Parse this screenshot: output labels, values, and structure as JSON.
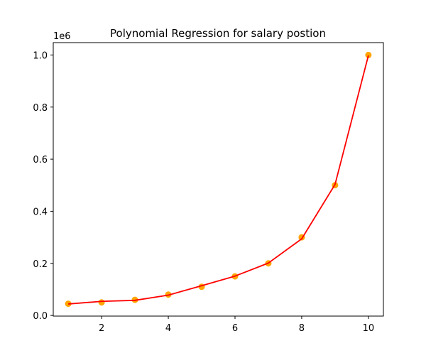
{
  "chart_data": {
    "type": "scatter",
    "title": "Polynomial Regression for salary postion",
    "xlabel": "",
    "ylabel": "",
    "offset_text": "1e6",
    "xlim": [
      0.55,
      10.45
    ],
    "ylim": [
      -0.0025,
      1.0475
    ],
    "x_ticks": [
      2,
      4,
      6,
      8,
      10
    ],
    "x_tick_labels": [
      "2",
      "4",
      "6",
      "8",
      "10"
    ],
    "y_ticks": [
      0.0,
      0.2,
      0.4,
      0.6,
      0.8,
      1.0
    ],
    "y_tick_labels": [
      "0.0",
      "0.2",
      "0.4",
      "0.6",
      "0.8",
      "1.0"
    ],
    "grid": false,
    "series": [
      {
        "kind": "scatter",
        "color": "#ffa500",
        "x": [
          1,
          2,
          3,
          4,
          5,
          6,
          7,
          8,
          9,
          10
        ],
        "y": [
          0.045,
          0.05,
          0.06,
          0.08,
          0.11,
          0.15,
          0.2,
          0.3,
          0.5,
          1.0
        ]
      },
      {
        "kind": "line",
        "color": "#ff0000",
        "x": [
          1,
          2,
          3,
          4,
          5,
          6,
          7,
          8,
          9,
          10
        ],
        "y": [
          0.044,
          0.054,
          0.058,
          0.078,
          0.114,
          0.151,
          0.201,
          0.294,
          0.503,
          0.998
        ]
      }
    ]
  }
}
